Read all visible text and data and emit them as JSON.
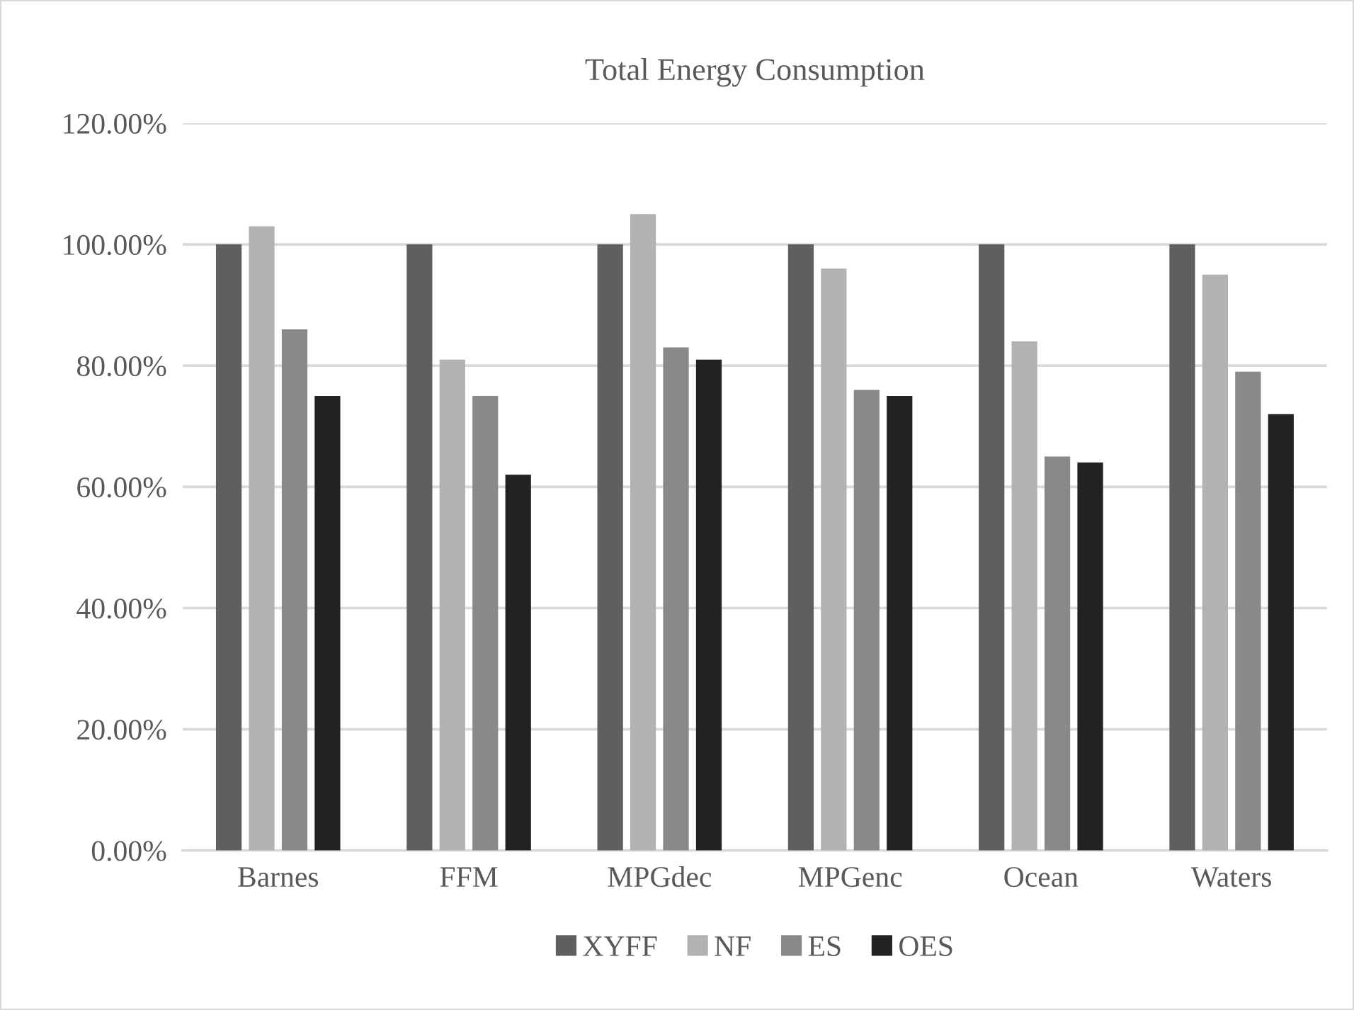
{
  "chart_data": {
    "type": "bar",
    "title": "Total Energy Consumption",
    "categories": [
      "Barnes",
      "FFM",
      "MPGdec",
      "MPGenc",
      "Ocean",
      "Waters"
    ],
    "series": [
      {
        "name": "XYFF",
        "color": "#5f5f5f",
        "values": [
          100,
          100,
          100,
          100,
          100,
          100
        ]
      },
      {
        "name": "NF",
        "color": "#b2b2b2",
        "values": [
          103,
          81,
          105,
          96,
          84,
          95
        ]
      },
      {
        "name": "ES",
        "color": "#898989",
        "values": [
          86,
          75,
          83,
          76,
          65,
          79
        ]
      },
      {
        "name": "OES",
        "color": "#222222",
        "values": [
          75,
          62,
          81,
          75,
          64,
          72
        ]
      }
    ],
    "ylim": [
      0,
      120
    ],
    "yticks": [
      {
        "value": 0,
        "label": "0.00%"
      },
      {
        "value": 20,
        "label": "20.00%"
      },
      {
        "value": 40,
        "label": "40.00%"
      },
      {
        "value": 60,
        "label": "60.00%"
      },
      {
        "value": 80,
        "label": "80.00%"
      },
      {
        "value": 100,
        "label": "100.00%"
      },
      {
        "value": 120,
        "label": "120.00%"
      }
    ],
    "grid": "y",
    "legend": "bottom"
  }
}
